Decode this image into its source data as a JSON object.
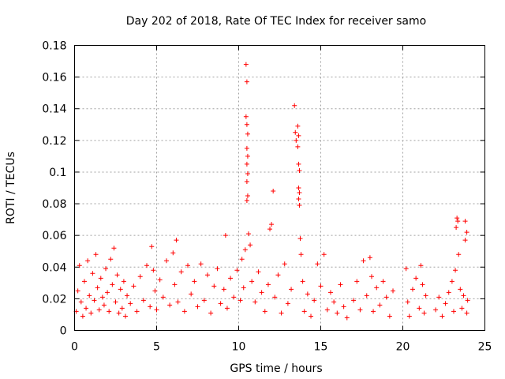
{
  "chart_data": {
    "type": "scatter",
    "title": "Day 202 of 2018, Rate Of TEC Index for receiver samo",
    "xlabel": "GPS time / hours",
    "ylabel": "ROTI / TECUs",
    "xlim": [
      0,
      25
    ],
    "ylim": [
      0,
      0.18
    ],
    "xticks": [
      "0",
      "5",
      "10",
      "15",
      "20",
      "25"
    ],
    "yticks": [
      "0",
      "0.02",
      "0.04",
      "0.06",
      "0.08",
      "0.1",
      "0.12",
      "0.14",
      "0.16",
      "0.18"
    ],
    "grid": true,
    "marker": "+",
    "color": "#ff0000",
    "points": [
      [
        0.1,
        0.012
      ],
      [
        0.2,
        0.025
      ],
      [
        0.3,
        0.041
      ],
      [
        0.4,
        0.018
      ],
      [
        0.5,
        0.009
      ],
      [
        0.6,
        0.031
      ],
      [
        0.7,
        0.014
      ],
      [
        0.8,
        0.044
      ],
      [
        0.9,
        0.022
      ],
      [
        1.0,
        0.011
      ],
      [
        1.1,
        0.036
      ],
      [
        1.2,
        0.019
      ],
      [
        1.3,
        0.048
      ],
      [
        1.4,
        0.027
      ],
      [
        1.5,
        0.013
      ],
      [
        1.6,
        0.033
      ],
      [
        1.7,
        0.021
      ],
      [
        1.8,
        0.016
      ],
      [
        1.9,
        0.039
      ],
      [
        2.0,
        0.024
      ],
      [
        2.1,
        0.012
      ],
      [
        2.2,
        0.045
      ],
      [
        2.3,
        0.029
      ],
      [
        2.4,
        0.052
      ],
      [
        2.5,
        0.018
      ],
      [
        2.6,
        0.035
      ],
      [
        2.7,
        0.011
      ],
      [
        2.8,
        0.026
      ],
      [
        2.9,
        0.014
      ],
      [
        3.0,
        0.031
      ],
      [
        3.1,
        0.009
      ],
      [
        3.2,
        0.022
      ],
      [
        3.4,
        0.017
      ],
      [
        3.6,
        0.028
      ],
      [
        3.8,
        0.012
      ],
      [
        4.0,
        0.034
      ],
      [
        4.2,
        0.019
      ],
      [
        4.4,
        0.041
      ],
      [
        4.6,
        0.015
      ],
      [
        4.7,
        0.053
      ],
      [
        4.8,
        0.038
      ],
      [
        4.9,
        0.025
      ],
      [
        5.0,
        0.013
      ],
      [
        5.2,
        0.032
      ],
      [
        5.4,
        0.021
      ],
      [
        5.6,
        0.044
      ],
      [
        5.8,
        0.016
      ],
      [
        6.0,
        0.049
      ],
      [
        6.1,
        0.029
      ],
      [
        6.2,
        0.057
      ],
      [
        6.3,
        0.018
      ],
      [
        6.5,
        0.037
      ],
      [
        6.7,
        0.012
      ],
      [
        6.9,
        0.041
      ],
      [
        7.1,
        0.023
      ],
      [
        7.3,
        0.031
      ],
      [
        7.5,
        0.015
      ],
      [
        7.7,
        0.042
      ],
      [
        7.9,
        0.019
      ],
      [
        8.1,
        0.035
      ],
      [
        8.3,
        0.011
      ],
      [
        8.5,
        0.028
      ],
      [
        8.7,
        0.039
      ],
      [
        8.9,
        0.017
      ],
      [
        9.1,
        0.026
      ],
      [
        9.2,
        0.06
      ],
      [
        9.3,
        0.014
      ],
      [
        9.5,
        0.033
      ],
      [
        9.7,
        0.021
      ],
      [
        9.9,
        0.038
      ],
      [
        10.1,
        0.019
      ],
      [
        10.2,
        0.045
      ],
      [
        10.3,
        0.027
      ],
      [
        10.4,
        0.051
      ],
      [
        10.45,
        0.168
      ],
      [
        10.5,
        0.157
      ],
      [
        10.45,
        0.135
      ],
      [
        10.5,
        0.13
      ],
      [
        10.55,
        0.124
      ],
      [
        10.5,
        0.115
      ],
      [
        10.55,
        0.11
      ],
      [
        10.5,
        0.105
      ],
      [
        10.55,
        0.099
      ],
      [
        10.5,
        0.094
      ],
      [
        10.55,
        0.085
      ],
      [
        10.5,
        0.082
      ],
      [
        10.6,
        0.061
      ],
      [
        10.7,
        0.054
      ],
      [
        10.8,
        0.031
      ],
      [
        11.0,
        0.018
      ],
      [
        11.2,
        0.037
      ],
      [
        11.4,
        0.024
      ],
      [
        11.6,
        0.012
      ],
      [
        11.8,
        0.029
      ],
      [
        11.9,
        0.064
      ],
      [
        12.0,
        0.067
      ],
      [
        12.1,
        0.088
      ],
      [
        12.2,
        0.021
      ],
      [
        12.4,
        0.035
      ],
      [
        12.6,
        0.011
      ],
      [
        12.8,
        0.042
      ],
      [
        13.0,
        0.017
      ],
      [
        13.2,
        0.026
      ],
      [
        13.4,
        0.142
      ],
      [
        13.45,
        0.125
      ],
      [
        13.5,
        0.12
      ],
      [
        13.6,
        0.129
      ],
      [
        13.65,
        0.123
      ],
      [
        13.6,
        0.116
      ],
      [
        13.65,
        0.105
      ],
      [
        13.7,
        0.101
      ],
      [
        13.65,
        0.09
      ],
      [
        13.7,
        0.087
      ],
      [
        13.65,
        0.083
      ],
      [
        13.7,
        0.079
      ],
      [
        13.75,
        0.058
      ],
      [
        13.8,
        0.048
      ],
      [
        13.9,
        0.031
      ],
      [
        14.0,
        0.012
      ],
      [
        14.2,
        0.023
      ],
      [
        14.4,
        0.009
      ],
      [
        14.6,
        0.019
      ],
      [
        14.8,
        0.042
      ],
      [
        15.0,
        0.028
      ],
      [
        15.2,
        0.048
      ],
      [
        15.4,
        0.013
      ],
      [
        15.6,
        0.024
      ],
      [
        15.8,
        0.018
      ],
      [
        16.0,
        0.011
      ],
      [
        16.2,
        0.029
      ],
      [
        16.4,
        0.015
      ],
      [
        16.6,
        0.008
      ],
      [
        17.0,
        0.019
      ],
      [
        17.2,
        0.031
      ],
      [
        17.4,
        0.013
      ],
      [
        17.6,
        0.044
      ],
      [
        17.8,
        0.022
      ],
      [
        18.0,
        0.046
      ],
      [
        18.1,
        0.034
      ],
      [
        18.2,
        0.012
      ],
      [
        18.4,
        0.027
      ],
      [
        18.6,
        0.016
      ],
      [
        18.8,
        0.031
      ],
      [
        19.0,
        0.021
      ],
      [
        19.2,
        0.009
      ],
      [
        19.4,
        0.025
      ],
      [
        20.2,
        0.039
      ],
      [
        20.3,
        0.018
      ],
      [
        20.4,
        0.009
      ],
      [
        20.6,
        0.026
      ],
      [
        20.8,
        0.033
      ],
      [
        21.0,
        0.014
      ],
      [
        21.1,
        0.041
      ],
      [
        21.2,
        0.029
      ],
      [
        21.3,
        0.011
      ],
      [
        21.4,
        0.022
      ],
      [
        22.0,
        0.013
      ],
      [
        22.2,
        0.021
      ],
      [
        22.4,
        0.009
      ],
      [
        22.6,
        0.017
      ],
      [
        22.8,
        0.024
      ],
      [
        23.0,
        0.031
      ],
      [
        23.1,
        0.012
      ],
      [
        23.2,
        0.038
      ],
      [
        23.25,
        0.065
      ],
      [
        23.3,
        0.071
      ],
      [
        23.35,
        0.069
      ],
      [
        23.4,
        0.048
      ],
      [
        23.5,
        0.026
      ],
      [
        23.6,
        0.014
      ],
      [
        23.7,
        0.022
      ],
      [
        23.8,
        0.057
      ],
      [
        23.9,
        0.062
      ],
      [
        23.8,
        0.069
      ],
      [
        23.9,
        0.011
      ],
      [
        23.95,
        0.019
      ]
    ]
  }
}
